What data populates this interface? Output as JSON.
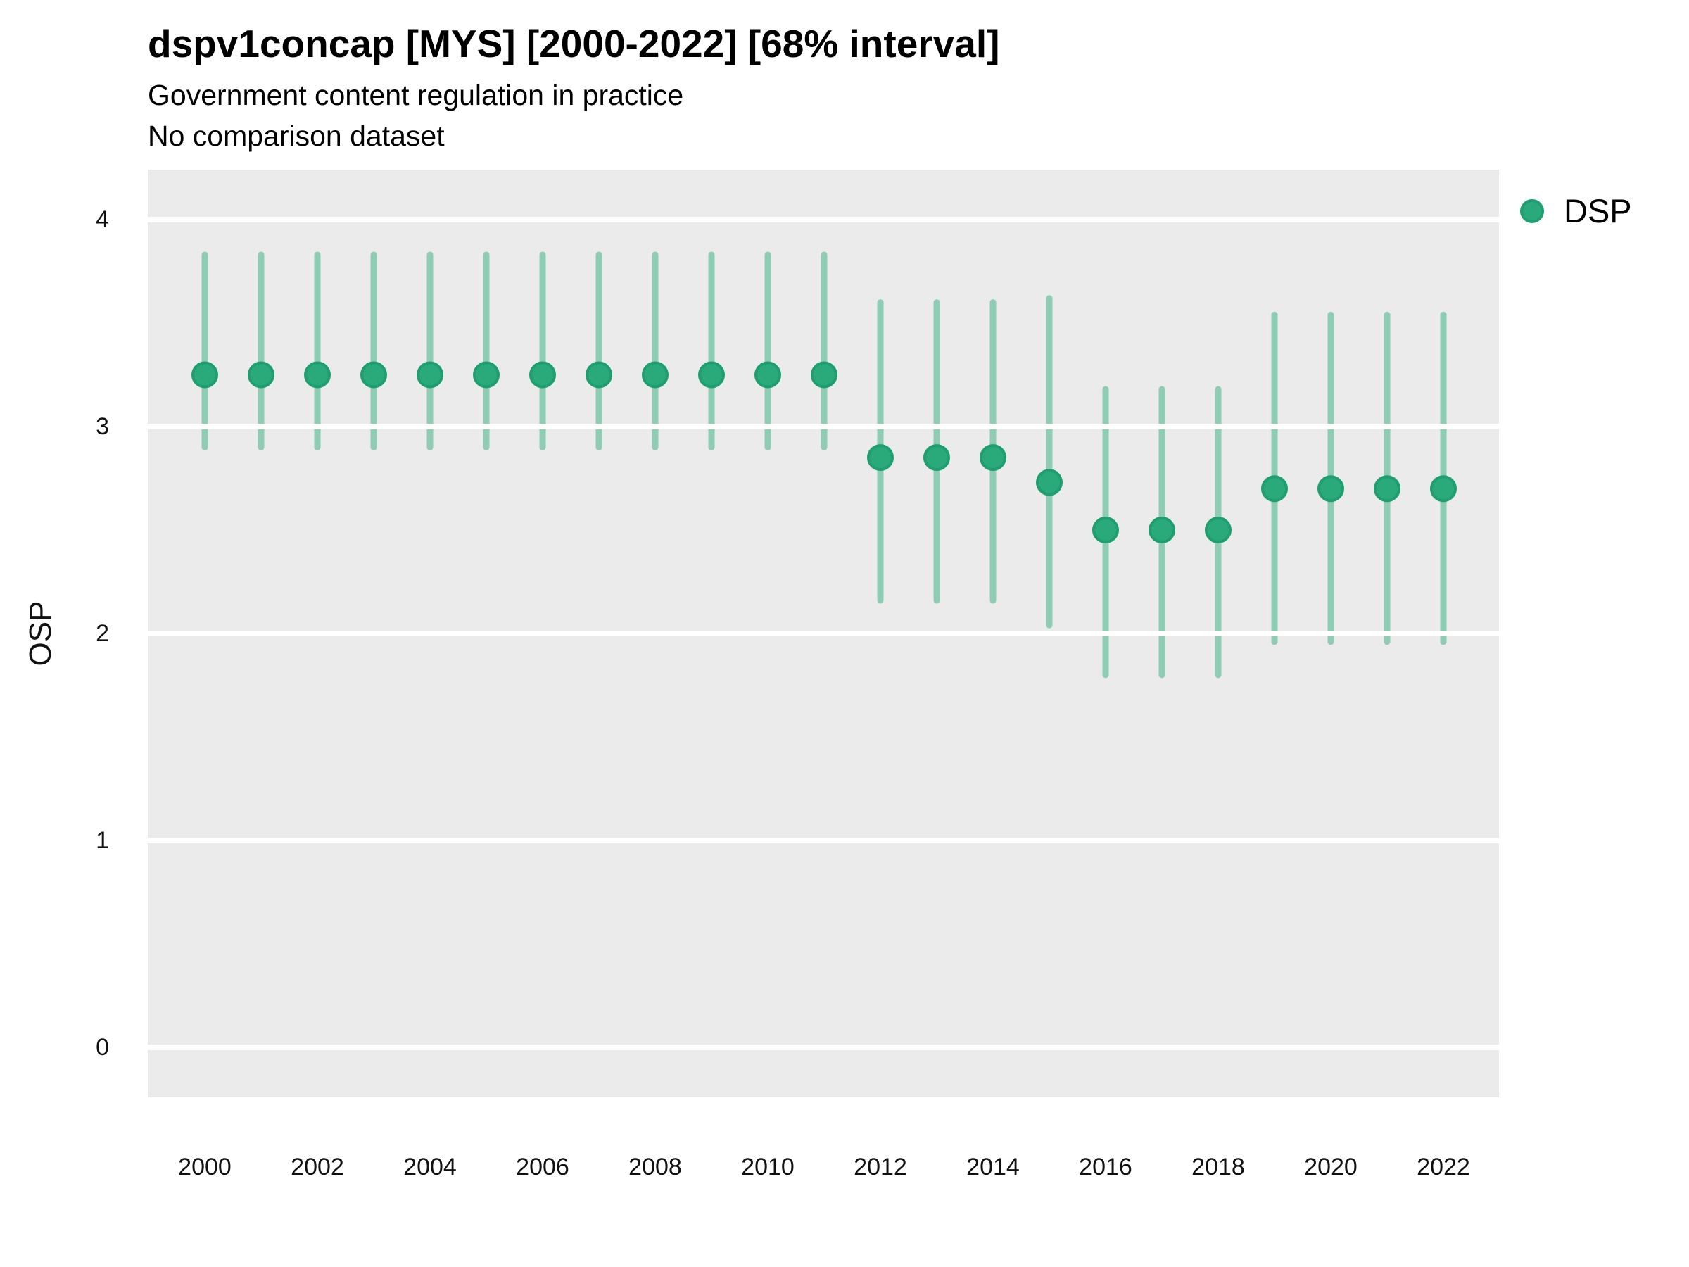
{
  "header": {
    "title": "dspv1concap [MYS] [2000-2022] [68% interval]",
    "subtitle": "Government content regulation in practice",
    "comparison_note": "No comparison dataset"
  },
  "y_axis": {
    "label": "OSP"
  },
  "legend": {
    "items": [
      {
        "label": "DSP",
        "marker": "point-icon"
      }
    ]
  },
  "colors": {
    "panel_background": "#ebebeb",
    "gridline": "#ffffff",
    "interval_bar": "#8fccb4",
    "point_fill": "#2aa97b",
    "point_stroke": "#1f9e70",
    "text": "#000000"
  },
  "chart_data": {
    "type": "pointrange",
    "title": "dspv1concap [MYS] [2000-2022] [68% interval]",
    "subtitle": "Government content regulation in practice",
    "note": "No comparison dataset",
    "xlabel": "",
    "ylabel": "OSP",
    "interval_level": "68%",
    "country": "MYS",
    "x": [
      2000,
      2001,
      2002,
      2003,
      2004,
      2005,
      2006,
      2007,
      2008,
      2009,
      2010,
      2011,
      2012,
      2013,
      2014,
      2015,
      2016,
      2017,
      2018,
      2019,
      2020,
      2021,
      2022
    ],
    "series": [
      {
        "name": "DSP",
        "estimate": [
          3.25,
          3.25,
          3.25,
          3.25,
          3.25,
          3.25,
          3.25,
          3.25,
          3.25,
          3.25,
          3.25,
          3.25,
          2.85,
          2.85,
          2.85,
          2.73,
          2.5,
          2.5,
          2.5,
          2.7,
          2.7,
          2.7,
          2.7
        ],
        "lower": [
          2.9,
          2.9,
          2.9,
          2.9,
          2.9,
          2.9,
          2.9,
          2.9,
          2.9,
          2.9,
          2.9,
          2.9,
          2.16,
          2.16,
          2.16,
          2.04,
          1.8,
          1.8,
          1.8,
          1.96,
          1.96,
          1.96,
          1.96
        ],
        "upper": [
          3.83,
          3.83,
          3.83,
          3.83,
          3.83,
          3.83,
          3.83,
          3.83,
          3.83,
          3.83,
          3.83,
          3.83,
          3.6,
          3.6,
          3.6,
          3.62,
          3.18,
          3.18,
          3.18,
          3.54,
          3.54,
          3.54,
          3.54
        ]
      }
    ],
    "xticks": [
      2000,
      2002,
      2004,
      2006,
      2008,
      2010,
      2012,
      2014,
      2016,
      2018,
      2020,
      2022
    ],
    "yticks": [
      0,
      1,
      2,
      3,
      4
    ],
    "xlim": [
      1999,
      2023
    ],
    "ylim": [
      -0.24,
      4.24
    ],
    "grid": "horizontal-major-only",
    "legend_position": "top-right"
  }
}
